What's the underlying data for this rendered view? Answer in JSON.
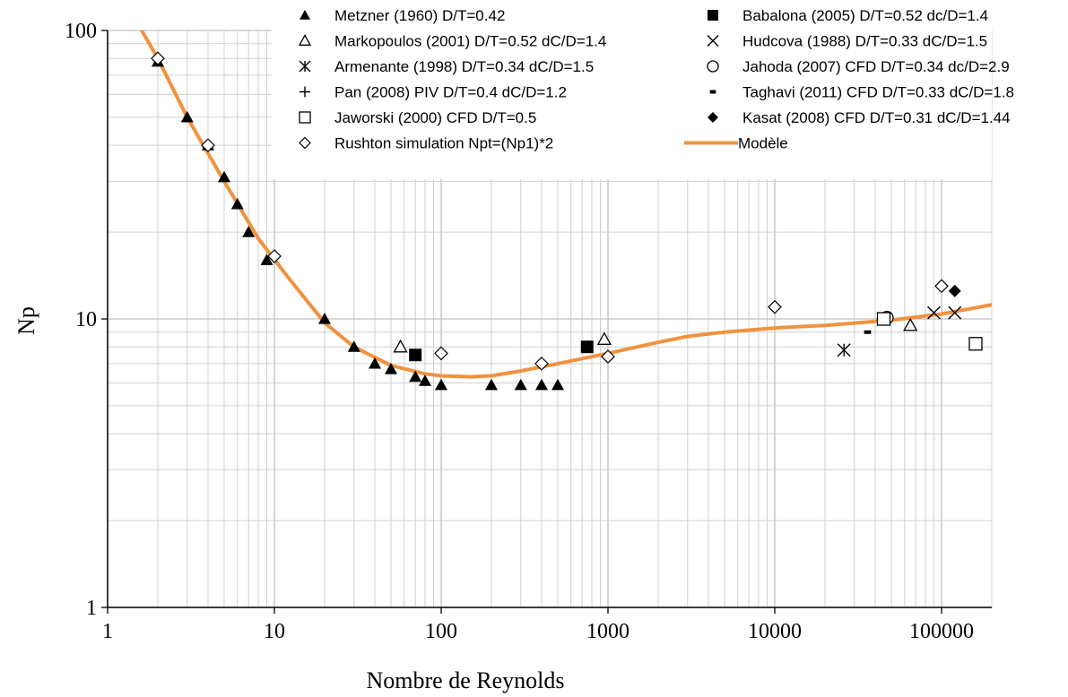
{
  "chart_data": {
    "type": "scatter",
    "title": "",
    "xlabel": "Nombre de Reynolds",
    "ylabel": "Np",
    "xscale": "log",
    "yscale": "log",
    "xlim": [
      1,
      200000
    ],
    "ylim": [
      1,
      100
    ],
    "x_ticks": [
      "1",
      "10",
      "100",
      "1000",
      "10000",
      "100000"
    ],
    "y_ticks": [
      "1",
      "10",
      "100"
    ],
    "grid": true,
    "legend_position": "top",
    "colors": {
      "model": "#f0923e",
      "markers": "#000000"
    },
    "series": [
      {
        "name": "Metzner (1960) D/T=0.42",
        "marker": "triangle-filled",
        "points": [
          [
            2,
            78
          ],
          [
            3,
            50
          ],
          [
            4,
            40
          ],
          [
            5,
            31
          ],
          [
            6,
            25
          ],
          [
            7,
            20
          ],
          [
            9,
            16
          ],
          [
            20,
            10
          ],
          [
            30,
            8
          ],
          [
            40,
            7
          ],
          [
            50,
            6.7
          ],
          [
            70,
            6.3
          ],
          [
            80,
            6.1
          ],
          [
            100,
            5.9
          ],
          [
            200,
            5.9
          ],
          [
            300,
            5.9
          ],
          [
            400,
            5.9
          ],
          [
            500,
            5.9
          ]
        ]
      },
      {
        "name": "Babalona (2005) D/T=0.52 dc/D=1.4",
        "marker": "square-filled",
        "points": [
          [
            70,
            7.5
          ],
          [
            750,
            8
          ]
        ]
      },
      {
        "name": "Markopoulos (2001) D/T=0.52 dC/D=1.4",
        "marker": "triangle-open",
        "points": [
          [
            57,
            8
          ],
          [
            950,
            8.5
          ],
          [
            65000,
            9.5
          ]
        ]
      },
      {
        "name": "Hudcova (1988) D/T=0.33 dC/D=1.5",
        "marker": "x",
        "points": [
          [
            90000,
            10.5
          ],
          [
            120000,
            10.5
          ]
        ]
      },
      {
        "name": "Armenante (1998) D/T=0.34 dC/D=1.5",
        "marker": "asterisk",
        "points": [
          [
            26000,
            7.8
          ]
        ]
      },
      {
        "name": "Jahoda (2007) CFD D/T=0.34 dc/D=2.9",
        "marker": "circle-open",
        "points": [
          [
            47000,
            10.1
          ]
        ]
      },
      {
        "name": "Pan (2008) PIV D/T=0.4 dC/D=1.2",
        "marker": "plus",
        "points": [
          [
            45000,
            10
          ]
        ]
      },
      {
        "name": "Taghavi (2011) CFD D/T=0.33 dC/D=1.8",
        "marker": "dash",
        "points": [
          [
            36000,
            9
          ]
        ]
      },
      {
        "name": "Jaworski (2000) CFD D/T=0.5",
        "marker": "square-open",
        "points": [
          [
            45000,
            10
          ],
          [
            160000,
            8.2
          ]
        ]
      },
      {
        "name": "Kasat (2008) CFD D/T=0.31 dC/D=1.44",
        "marker": "diamond-filled",
        "points": [
          [
            120000,
            12.5
          ]
        ]
      },
      {
        "name": "Rushton simulation Npt=(Np1)*2",
        "marker": "diamond-open",
        "points": [
          [
            2,
            80
          ],
          [
            4,
            40
          ],
          [
            10,
            16.5
          ],
          [
            100,
            7.6
          ],
          [
            400,
            7
          ],
          [
            1000,
            7.4
          ],
          [
            10000,
            11
          ],
          [
            100000,
            13
          ]
        ]
      },
      {
        "name": "Modèle",
        "marker": "line",
        "points": [
          [
            1.6,
            100
          ],
          [
            2,
            80
          ],
          [
            3,
            50
          ],
          [
            5,
            30
          ],
          [
            8,
            19
          ],
          [
            12,
            14
          ],
          [
            20,
            9.7
          ],
          [
            30,
            8
          ],
          [
            50,
            6.9
          ],
          [
            80,
            6.45
          ],
          [
            100,
            6.35
          ],
          [
            150,
            6.3
          ],
          [
            200,
            6.35
          ],
          [
            300,
            6.6
          ],
          [
            500,
            7
          ],
          [
            1000,
            7.6
          ],
          [
            2000,
            8.3
          ],
          [
            3000,
            8.7
          ],
          [
            5000,
            9
          ],
          [
            10000,
            9.3
          ],
          [
            20000,
            9.5
          ],
          [
            50000,
            9.9
          ],
          [
            100000,
            10.4
          ],
          [
            200000,
            11.2
          ]
        ]
      }
    ]
  }
}
